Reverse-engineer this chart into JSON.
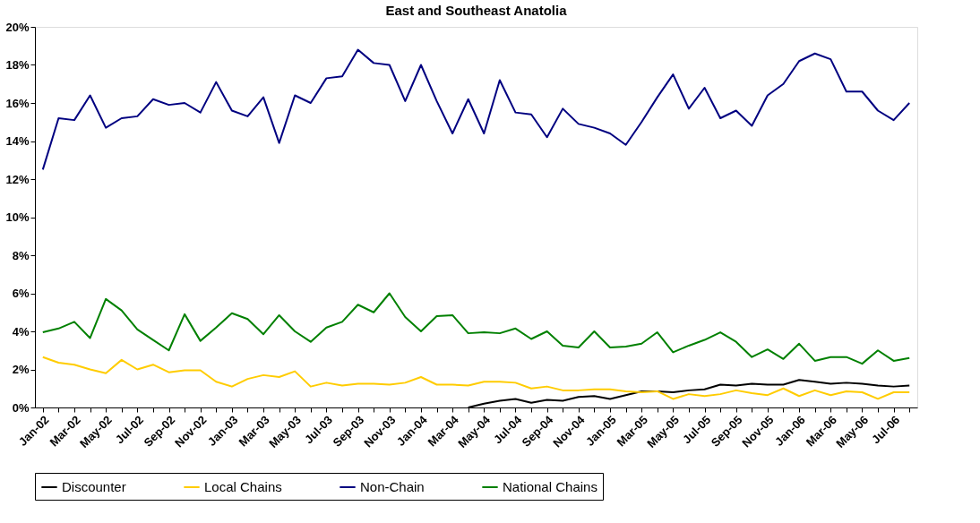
{
  "chart_data": {
    "type": "line",
    "title": "East and Southeast Anatolia",
    "categories": [
      "Jan-02",
      null,
      "Mar-02",
      null,
      "May-02",
      null,
      "Jul-02",
      null,
      "Sep-02",
      null,
      "Nov-02",
      null,
      "Jan-03",
      null,
      "Mar-03",
      null,
      "May-03",
      null,
      "Jul-03",
      null,
      "Sep-03",
      null,
      "Nov-03",
      null,
      "Jan-04",
      null,
      "Mar-04",
      null,
      "May-04",
      null,
      "Jul-04",
      null,
      "Sep-04",
      null,
      "Nov-04",
      null,
      "Jan-05",
      null,
      "Mar-05",
      null,
      "May-05",
      null,
      "Jul-05",
      null,
      "Sep-05",
      null,
      "Nov-05",
      null,
      "Jan-06",
      null,
      "Mar-06",
      null,
      "May-06",
      null,
      "Jul-06",
      null
    ],
    "series": [
      {
        "name": "Discounter",
        "color": "#000000",
        "values": [
          null,
          null,
          null,
          null,
          null,
          null,
          null,
          null,
          null,
          null,
          null,
          null,
          null,
          null,
          null,
          null,
          null,
          null,
          null,
          null,
          null,
          null,
          null,
          null,
          null,
          null,
          null,
          0.0,
          0.2,
          0.35,
          0.45,
          0.25,
          0.4,
          0.35,
          0.55,
          0.6,
          0.45,
          0.65,
          0.85,
          0.85,
          0.8,
          0.9,
          0.95,
          1.2,
          1.15,
          1.25,
          1.2,
          1.2,
          1.45,
          1.35,
          1.25,
          1.3,
          1.25,
          1.15,
          1.1,
          1.15
        ]
      },
      {
        "name": "Local Chains",
        "color": "#ffcc00",
        "values": [
          2.65,
          2.35,
          2.25,
          2.0,
          1.8,
          2.5,
          2.0,
          2.25,
          1.85,
          1.95,
          1.95,
          1.35,
          1.1,
          1.5,
          1.7,
          1.6,
          1.9,
          1.1,
          1.3,
          1.15,
          1.25,
          1.25,
          1.2,
          1.3,
          1.6,
          1.2,
          1.2,
          1.15,
          1.35,
          1.35,
          1.3,
          1.0,
          1.1,
          0.9,
          0.9,
          0.95,
          0.95,
          0.85,
          0.8,
          0.85,
          0.45,
          0.7,
          0.6,
          0.7,
          0.9,
          0.75,
          0.65,
          1.0,
          0.6,
          0.9,
          0.65,
          0.85,
          0.8,
          0.45,
          0.8,
          0.8
        ]
      },
      {
        "name": "Non-Chain",
        "color": "#000080",
        "values": [
          12.5,
          15.2,
          15.1,
          16.4,
          14.7,
          15.2,
          15.3,
          16.2,
          15.9,
          16.0,
          15.5,
          17.1,
          15.6,
          15.3,
          16.3,
          13.9,
          16.4,
          16.0,
          17.3,
          17.4,
          18.8,
          18.1,
          18.0,
          16.1,
          18.0,
          16.1,
          14.4,
          16.2,
          14.4,
          17.2,
          15.5,
          15.4,
          14.2,
          15.7,
          14.9,
          14.7,
          14.4,
          13.8,
          15.0,
          16.3,
          17.5,
          15.7,
          16.8,
          15.2,
          15.6,
          14.8,
          16.4,
          17.0,
          18.2,
          18.6,
          18.3,
          16.6,
          16.6,
          15.6,
          15.1,
          16.0
        ]
      },
      {
        "name": "National Chains",
        "color": "#008000",
        "values": [
          3.95,
          4.15,
          4.5,
          3.65,
          5.7,
          5.1,
          4.1,
          3.55,
          3.0,
          4.9,
          3.5,
          4.2,
          4.95,
          4.65,
          3.85,
          4.85,
          4.0,
          3.45,
          4.2,
          4.5,
          5.4,
          5.0,
          6.0,
          4.75,
          4.0,
          4.8,
          4.85,
          3.9,
          3.95,
          3.9,
          4.15,
          3.6,
          4.0,
          3.25,
          3.15,
          4.0,
          3.15,
          3.2,
          3.35,
          3.95,
          2.9,
          3.25,
          3.55,
          3.95,
          3.45,
          2.65,
          3.05,
          2.55,
          3.35,
          2.45,
          2.65,
          2.65,
          2.3,
          3.0,
          2.45,
          2.6
        ]
      }
    ],
    "ylim": [
      0,
      20
    ],
    "yticks": [
      {
        "value": 0,
        "label": "0%"
      },
      {
        "value": 2,
        "label": "2%"
      },
      {
        "value": 4,
        "label": "4%"
      },
      {
        "value": 6,
        "label": "6%"
      },
      {
        "value": 8,
        "label": "8%"
      },
      {
        "value": 10,
        "label": "10%"
      },
      {
        "value": 12,
        "label": "12%"
      },
      {
        "value": 14,
        "label": "14%"
      },
      {
        "value": 16,
        "label": "16%"
      },
      {
        "value": 18,
        "label": "18%"
      },
      {
        "value": 20,
        "label": "20%"
      }
    ],
    "grid": false,
    "legend": "bottom",
    "marker": "none",
    "line_style": "solid"
  }
}
